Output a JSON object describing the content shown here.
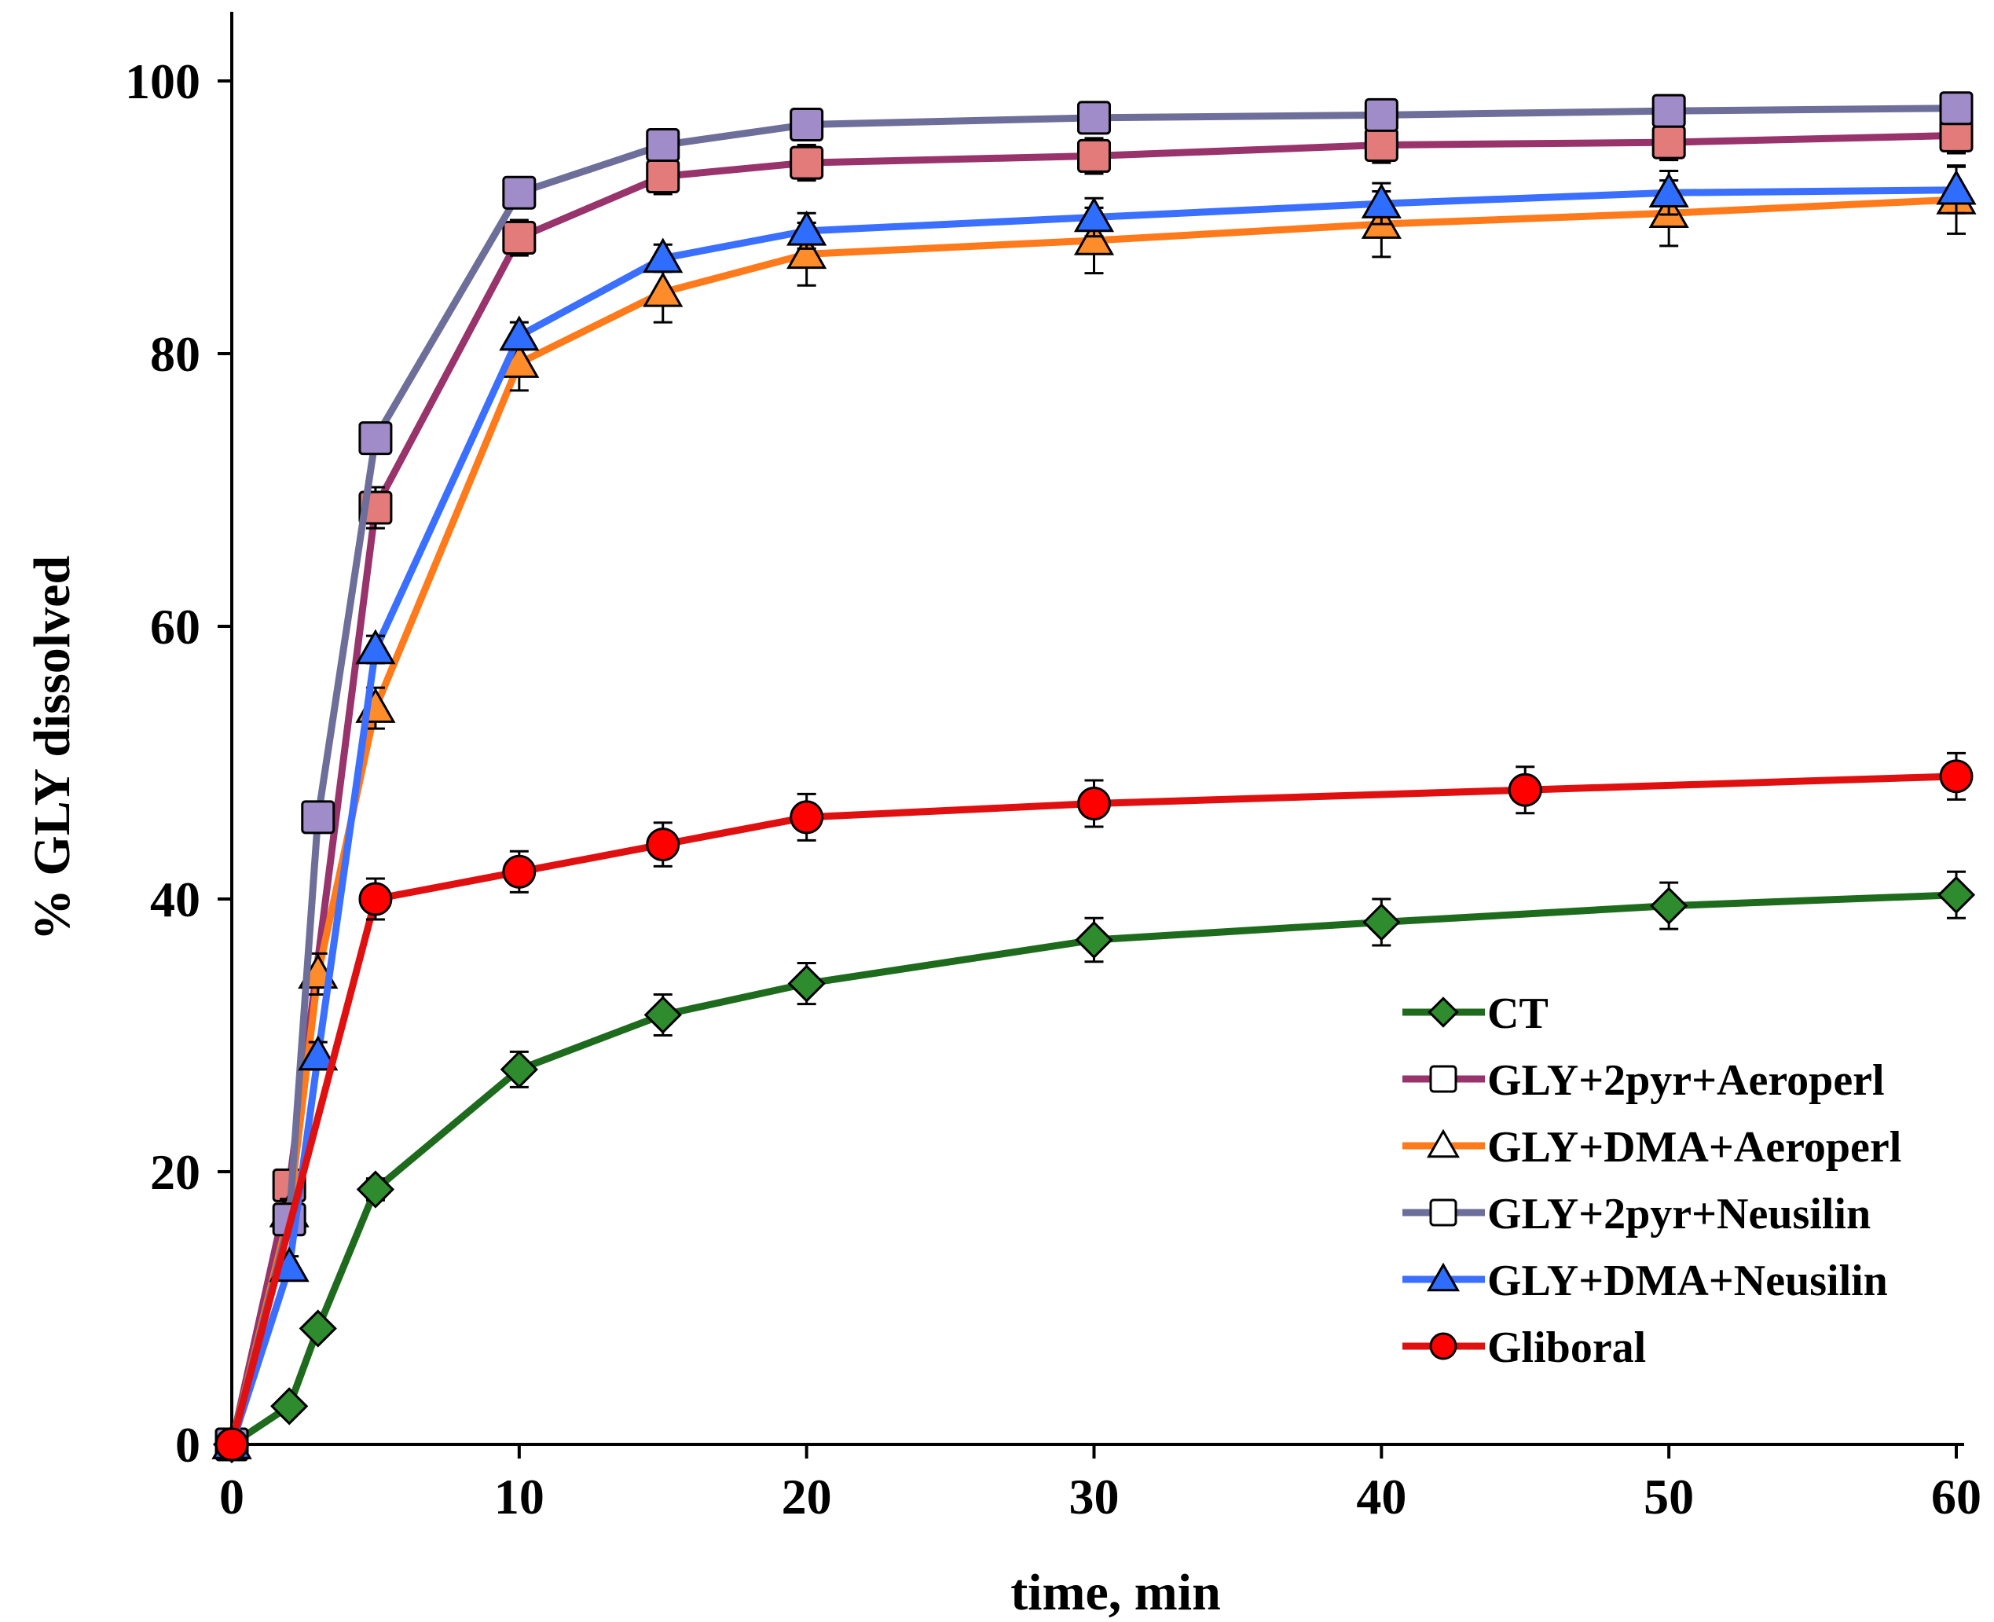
{
  "chart_data": {
    "type": "line",
    "title": "",
    "xlabel": "time, min",
    "ylabel": "% GLY dissolved",
    "xlim": [
      0,
      60
    ],
    "ylim": [
      0,
      100
    ],
    "x_ticks": [
      "0",
      "10",
      "20",
      "30",
      "40",
      "50",
      "60"
    ],
    "y_ticks": [
      "0",
      "20",
      "40",
      "60",
      "80",
      "100"
    ],
    "grid": false,
    "legend_position": "bottom-right",
    "series": [
      {
        "name": "CT",
        "marker": "diamond",
        "line_color": "#1e6b1e",
        "marker_color": "#2e8b2e",
        "x": [
          0,
          2,
          3,
          5,
          10,
          15,
          20,
          30,
          40,
          50,
          60
        ],
        "y": [
          0,
          2.8,
          8.5,
          18.7,
          27.5,
          31.5,
          33.8,
          37.0,
          38.3,
          39.5,
          40.3
        ],
        "err": [
          0,
          0.3,
          0.5,
          0.8,
          1.3,
          1.5,
          1.5,
          1.6,
          1.7,
          1.7,
          1.7
        ]
      },
      {
        "name": "GLY+2pyr+Aeroperl",
        "marker": "square",
        "line_color": "#99336b",
        "marker_color": "#e37b7b",
        "x": [
          0,
          2,
          5,
          10,
          15,
          20,
          30,
          40,
          50,
          60
        ],
        "y": [
          0,
          19.0,
          68.7,
          88.5,
          93.0,
          94.0,
          94.5,
          95.3,
          95.5,
          96.0
        ],
        "err": [
          0,
          1.0,
          1.5,
          1.3,
          1.3,
          1.3,
          1.3,
          1.3,
          1.3,
          1.3
        ]
      },
      {
        "name": "GLY+DMA+Aeroperl",
        "marker": "triangle",
        "line_color": "#ff7a1a",
        "marker_color": "#ff8c2a",
        "x": [
          0,
          2,
          3,
          5,
          10,
          15,
          20,
          30,
          40,
          50,
          60
        ],
        "y": [
          0,
          17.0,
          34.5,
          54.0,
          79.3,
          84.5,
          87.3,
          88.3,
          89.5,
          90.3,
          91.3
        ],
        "err": [
          0,
          1.0,
          1.5,
          1.5,
          2.0,
          2.2,
          2.3,
          2.4,
          2.4,
          2.4,
          2.5
        ]
      },
      {
        "name": "GLY+2pyr+Neusilin",
        "marker": "square",
        "line_color": "#6e6e9a",
        "marker_color": "#a08cc8",
        "x": [
          0,
          2,
          3,
          5,
          10,
          15,
          20,
          30,
          40,
          50,
          60
        ],
        "y": [
          0,
          16.5,
          46.0,
          73.8,
          91.8,
          95.3,
          96.8,
          97.3,
          97.5,
          97.8,
          98.0
        ],
        "err": [
          0,
          1.0,
          1.0,
          1.0,
          1.0,
          1.0,
          1.0,
          1.0,
          1.0,
          1.0,
          1.0
        ]
      },
      {
        "name": "GLY+DMA+Neusilin",
        "marker": "triangle",
        "line_color": "#3a6fff",
        "marker_color": "#2f6dff",
        "x": [
          0,
          2,
          3,
          5,
          10,
          15,
          20,
          30,
          40,
          50,
          60
        ],
        "y": [
          0,
          13.0,
          28.5,
          58.3,
          81.3,
          87.0,
          89.0,
          90.0,
          91.0,
          91.8,
          92.0
        ],
        "err": [
          0,
          0.8,
          1.0,
          1.0,
          1.0,
          1.0,
          1.3,
          1.4,
          1.5,
          1.6,
          1.7
        ]
      },
      {
        "name": "Gliboral",
        "marker": "circle",
        "line_color": "#e01010",
        "marker_color": "#ff0000",
        "x": [
          0,
          5,
          10,
          15,
          20,
          30,
          45,
          60
        ],
        "y": [
          0,
          40.0,
          42.0,
          44.0,
          46.0,
          47.0,
          48.0,
          49.0
        ],
        "err": [
          0,
          1.5,
          1.5,
          1.6,
          1.7,
          1.7,
          1.7,
          1.7
        ]
      }
    ]
  }
}
